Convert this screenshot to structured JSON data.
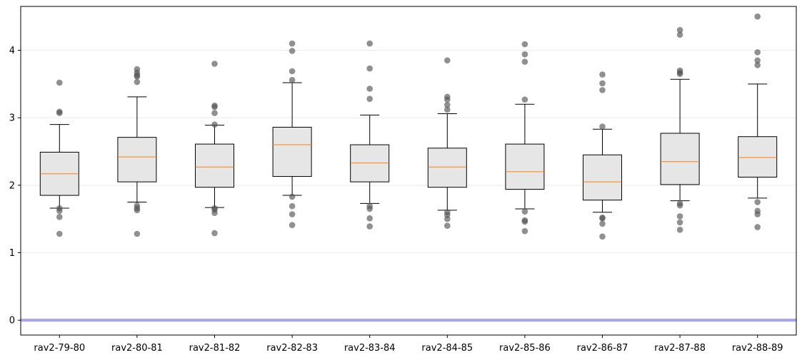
{
  "chart_data": {
    "type": "box",
    "title": "",
    "xlabel": "",
    "ylabel": "",
    "ylim": [
      -0.22,
      4.65
    ],
    "yticks": [
      0,
      1,
      2,
      3,
      4
    ],
    "grid": "horizontal",
    "reference_line": {
      "y": 0,
      "color": "#a3a3f5"
    },
    "colors": {
      "box_fill": "#e6e6e6",
      "box_edge": "#000000",
      "median": "#ff7f0e",
      "outlier": "#555555"
    },
    "categories": [
      "rav2-79-80",
      "rav2-80-81",
      "rav2-81-82",
      "rav2-82-83",
      "rav2-83-84",
      "rav2-84-85",
      "rav2-85-86",
      "rav2-86-87",
      "rav2-87-88",
      "rav2-88-89"
    ],
    "boxes": [
      {
        "whislo": 1.66,
        "q1": 1.85,
        "med": 2.17,
        "q3": 2.49,
        "whishi": 2.9,
        "outliers": [
          1.28,
          1.53,
          1.62,
          1.66,
          3.07,
          3.09,
          3.52
        ]
      },
      {
        "whislo": 1.75,
        "q1": 2.05,
        "med": 2.42,
        "q3": 2.71,
        "whishi": 3.31,
        "outliers": [
          1.28,
          1.63,
          1.66,
          1.7,
          3.53,
          3.61,
          3.63,
          3.67,
          3.72
        ]
      },
      {
        "whislo": 1.67,
        "q1": 1.97,
        "med": 2.27,
        "q3": 2.61,
        "whishi": 2.89,
        "outliers": [
          1.29,
          1.59,
          1.64,
          1.66,
          2.9,
          3.07,
          3.16,
          3.18,
          3.8
        ]
      },
      {
        "whislo": 1.85,
        "q1": 2.13,
        "med": 2.6,
        "q3": 2.86,
        "whishi": 3.52,
        "outliers": [
          1.41,
          1.57,
          1.69,
          1.83,
          3.56,
          3.69,
          3.99,
          4.1
        ]
      },
      {
        "whislo": 1.73,
        "q1": 2.05,
        "med": 2.33,
        "q3": 2.6,
        "whishi": 3.04,
        "outliers": [
          1.39,
          1.51,
          1.65,
          1.69,
          3.28,
          3.43,
          3.73,
          4.1
        ]
      },
      {
        "whislo": 1.63,
        "q1": 1.97,
        "med": 2.27,
        "q3": 2.55,
        "whishi": 3.06,
        "outliers": [
          1.4,
          1.5,
          1.56,
          1.6,
          3.12,
          3.19,
          3.27,
          3.31,
          3.85
        ]
      },
      {
        "whislo": 1.65,
        "q1": 1.94,
        "med": 2.2,
        "q3": 2.61,
        "whishi": 3.2,
        "outliers": [
          1.32,
          1.46,
          1.48,
          1.61,
          3.27,
          3.83,
          3.94,
          4.09
        ]
      },
      {
        "whislo": 1.6,
        "q1": 1.78,
        "med": 2.05,
        "q3": 2.45,
        "whishi": 2.83,
        "outliers": [
          1.24,
          1.43,
          1.51,
          1.52,
          2.87,
          3.41,
          3.51,
          3.64
        ]
      },
      {
        "whislo": 1.77,
        "q1": 2.01,
        "med": 2.35,
        "q3": 2.77,
        "whishi": 3.57,
        "outliers": [
          1.34,
          1.45,
          1.54,
          1.7,
          1.73,
          3.65,
          3.67,
          3.7,
          4.23,
          4.3
        ]
      },
      {
        "whislo": 1.81,
        "q1": 2.12,
        "med": 2.41,
        "q3": 2.72,
        "whishi": 3.5,
        "outliers": [
          1.38,
          1.57,
          1.62,
          1.75,
          3.78,
          3.85,
          3.97,
          4.5
        ]
      }
    ]
  }
}
